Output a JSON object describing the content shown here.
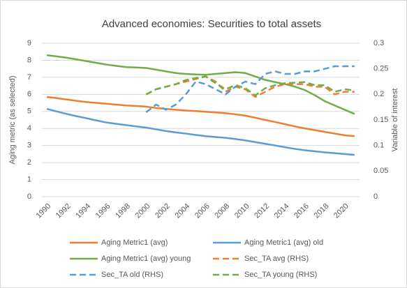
{
  "chart_data": {
    "type": "line",
    "title": "Advanced economies: Securities to total assets",
    "y_label": "Aging metric (as selected)",
    "y2_label": "Variable of interest",
    "x": [
      1990,
      1991,
      1992,
      1993,
      1994,
      1995,
      1996,
      1997,
      1998,
      1999,
      2000,
      2001,
      2002,
      2003,
      2004,
      2005,
      2006,
      2007,
      2008,
      2009,
      2010,
      2011,
      2012,
      2013,
      2014,
      2015,
      2016,
      2017,
      2018,
      2019,
      2020,
      2021
    ],
    "xlim": [
      1989.5,
      2021.5
    ],
    "xticks": [
      1990,
      1992,
      1994,
      1996,
      1998,
      2000,
      2002,
      2004,
      2006,
      2008,
      2010,
      2012,
      2014,
      2016,
      2018,
      2020
    ],
    "ylim": [
      0,
      9
    ],
    "yticks": [
      0,
      1,
      2,
      3,
      4,
      5,
      6,
      7,
      8,
      9
    ],
    "y2lim": [
      0,
      0.3
    ],
    "y2ticks": [
      0,
      0.05,
      0.1,
      0.15,
      0.2,
      0.25,
      0.3
    ],
    "grid": true,
    "legend": "bottom",
    "series": [
      {
        "name": "Aging Metric1 (avg)",
        "color": "#ed7d31",
        "style": "solid",
        "values": [
          5.85,
          5.78,
          5.7,
          5.62,
          5.55,
          5.5,
          5.45,
          5.4,
          5.35,
          5.32,
          5.28,
          5.2,
          5.15,
          5.1,
          5.05,
          5.02,
          4.98,
          4.94,
          4.9,
          4.83,
          4.75,
          4.63,
          4.5,
          4.38,
          4.25,
          4.12,
          4.0,
          3.9,
          3.8,
          3.7,
          3.6,
          3.55
        ]
      },
      {
        "name": "Aging Metric1 (avg) old",
        "color": "#5b9bd5",
        "style": "solid",
        "values": [
          5.15,
          5.0,
          4.85,
          4.72,
          4.6,
          4.47,
          4.35,
          4.27,
          4.2,
          4.12,
          4.05,
          3.95,
          3.85,
          3.77,
          3.7,
          3.62,
          3.55,
          3.5,
          3.45,
          3.38,
          3.3,
          3.2,
          3.1,
          3.0,
          2.9,
          2.8,
          2.72,
          2.66,
          2.6,
          2.55,
          2.5,
          2.45
        ]
      },
      {
        "name": "Aging Metric1 (avg) young",
        "color": "#70ad47",
        "style": "solid",
        "values": [
          8.3,
          8.23,
          8.15,
          8.05,
          7.95,
          7.85,
          7.75,
          7.67,
          7.6,
          7.58,
          7.55,
          7.45,
          7.35,
          7.25,
          7.2,
          7.17,
          7.15,
          7.2,
          7.25,
          7.3,
          7.25,
          7.05,
          6.85,
          6.72,
          6.6,
          6.45,
          6.25,
          5.95,
          5.6,
          5.35,
          5.1,
          4.85
        ]
      },
      {
        "name": "Sec_TA avg (RHS)",
        "color": "#ed7d31",
        "style": "dashed",
        "axis": "y2",
        "values": [
          null,
          null,
          null,
          null,
          null,
          null,
          null,
          null,
          null,
          null,
          0.2,
          0.21,
          0.215,
          0.22,
          0.225,
          0.23,
          0.235,
          0.225,
          0.205,
          0.215,
          0.21,
          0.195,
          0.205,
          0.215,
          0.22,
          0.22,
          0.22,
          0.215,
          0.215,
          0.2,
          0.205,
          0.205
        ]
      },
      {
        "name": "Sec_TA old (RHS)",
        "color": "#5b9bd5",
        "style": "dashed",
        "axis": "y2",
        "values": [
          null,
          null,
          null,
          null,
          null,
          null,
          null,
          null,
          null,
          null,
          0.165,
          0.18,
          0.17,
          0.18,
          0.2,
          0.225,
          0.22,
          0.21,
          0.2,
          0.215,
          0.225,
          0.22,
          0.24,
          0.245,
          0.24,
          0.24,
          0.245,
          0.245,
          0.25,
          0.255,
          0.255,
          0.255
        ]
      },
      {
        "name": "Sec_TA young (RHS)",
        "color": "#70ad47",
        "style": "dashed",
        "axis": "y2",
        "values": [
          null,
          null,
          null,
          null,
          null,
          null,
          null,
          null,
          null,
          null,
          0.2,
          0.21,
          0.215,
          0.22,
          0.228,
          0.232,
          0.235,
          0.222,
          0.21,
          0.218,
          0.212,
          0.198,
          0.212,
          0.218,
          0.222,
          0.223,
          0.224,
          0.218,
          0.218,
          0.205,
          0.21,
          0.208
        ]
      }
    ]
  }
}
